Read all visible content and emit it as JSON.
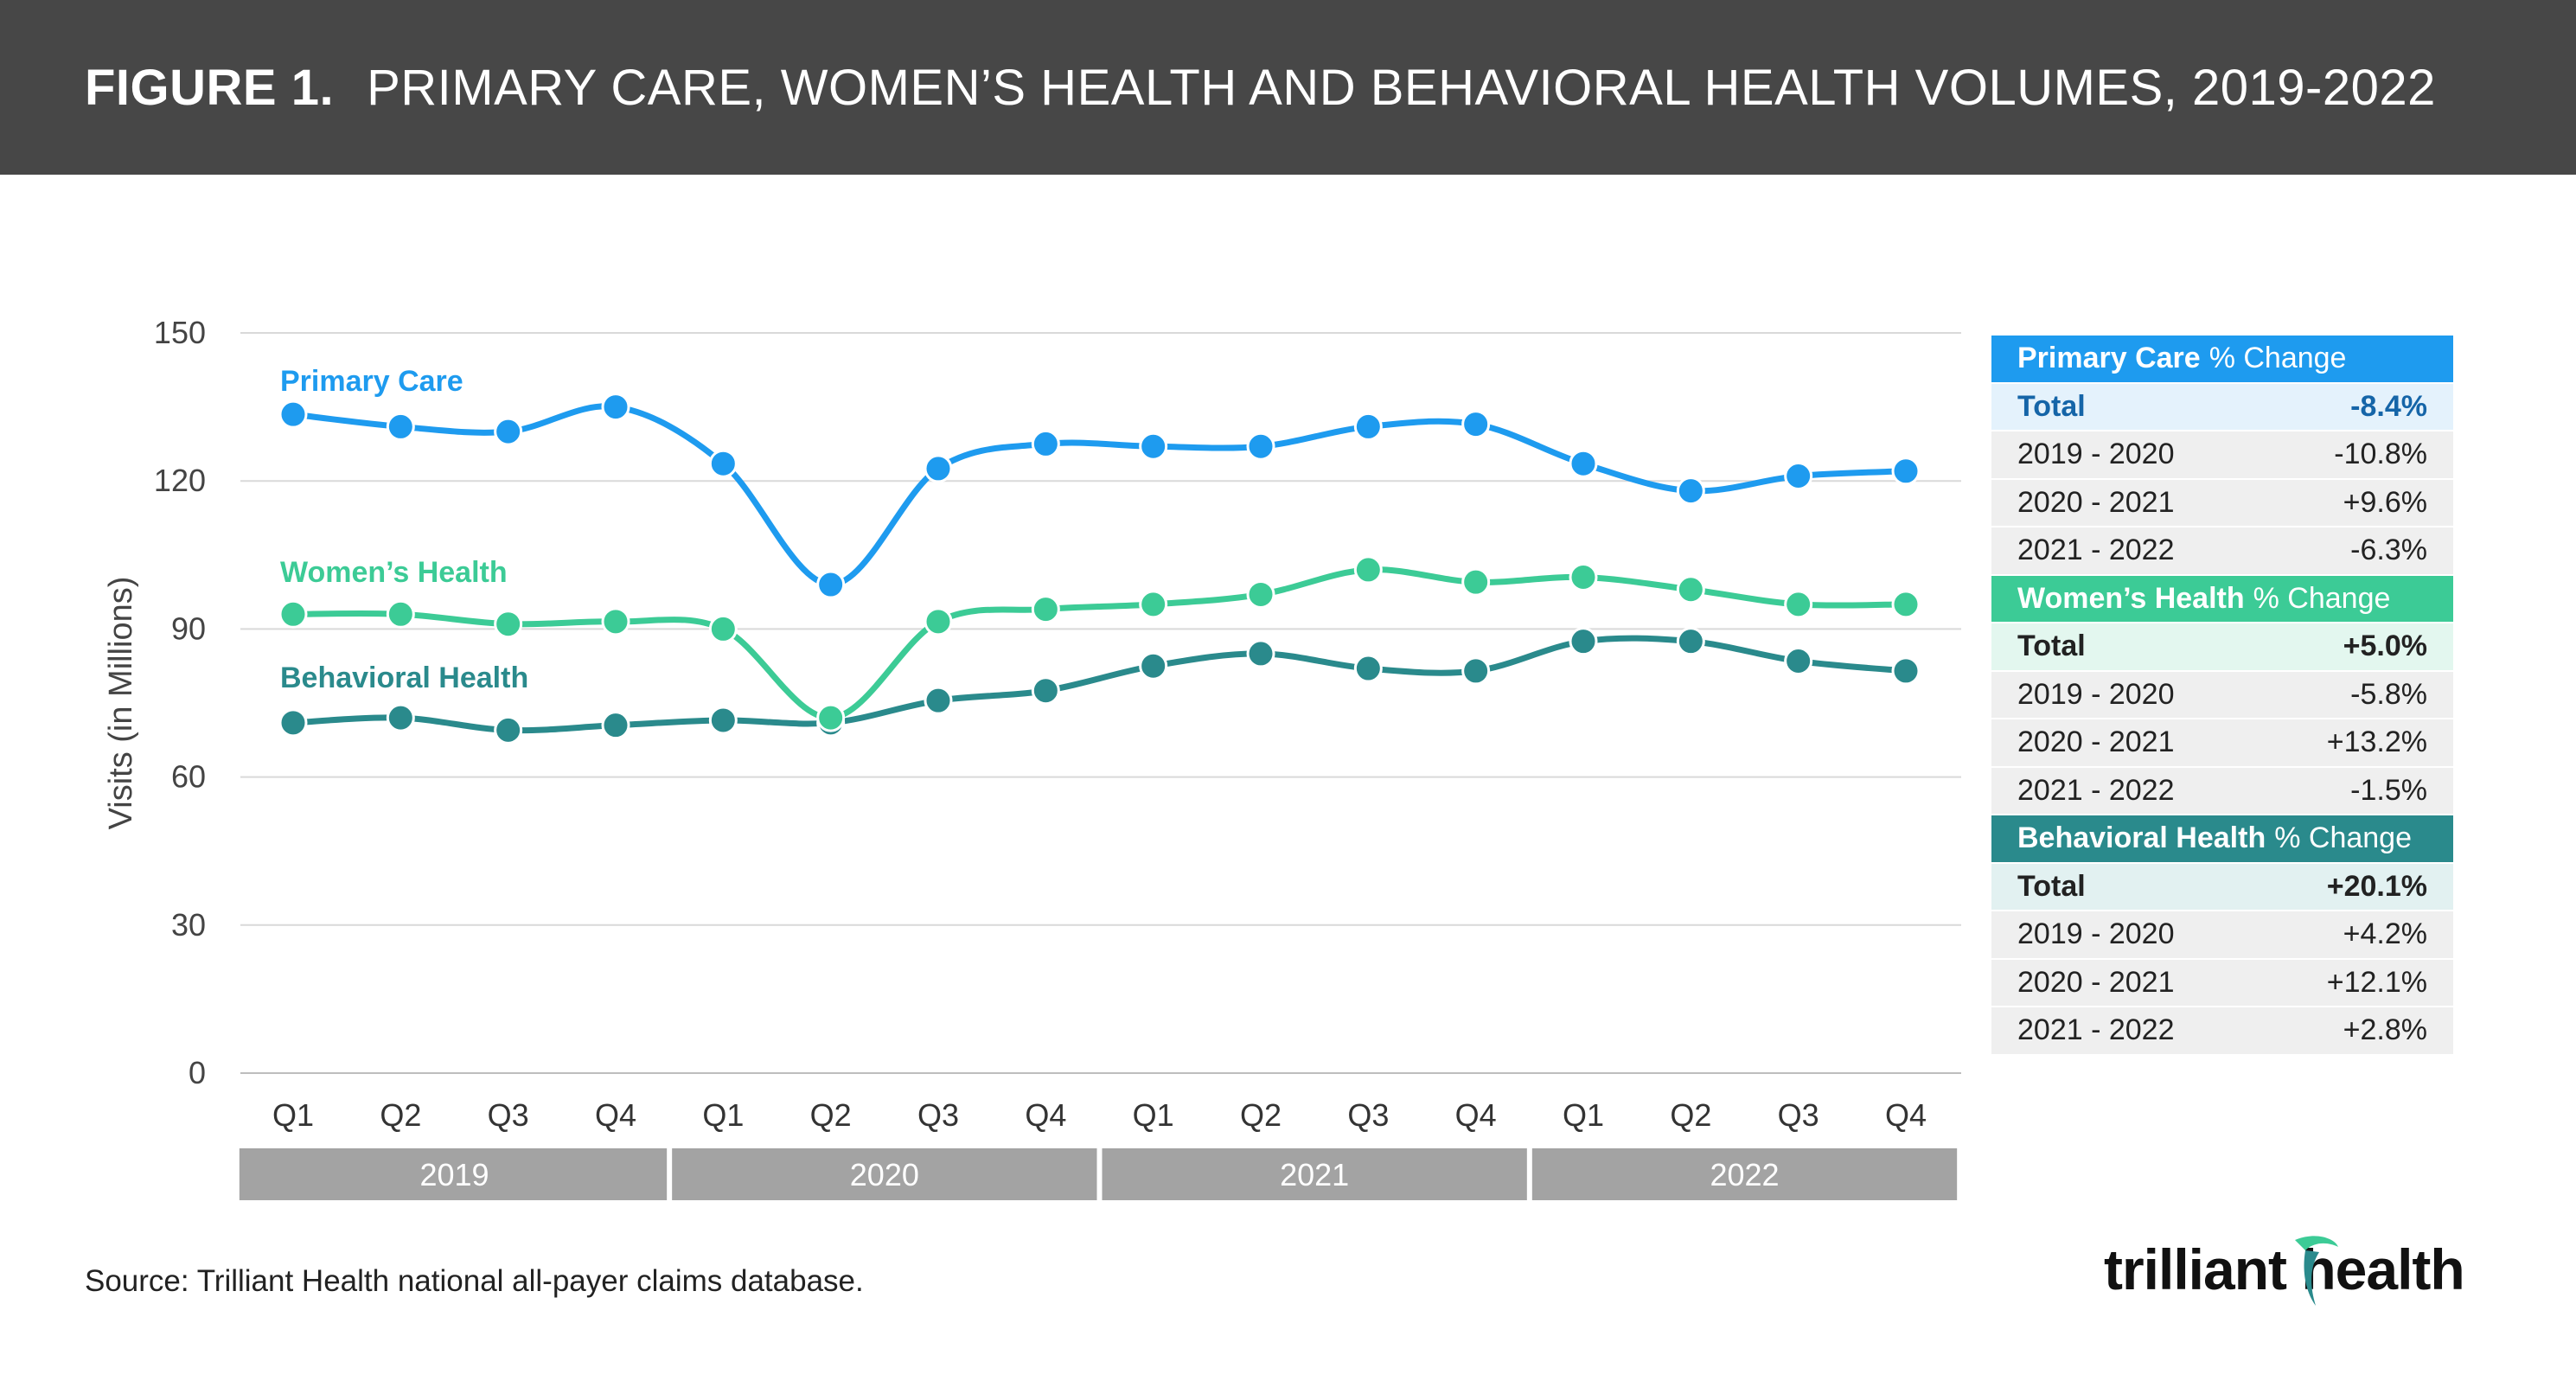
{
  "header": {
    "figure_label": "FIGURE 1.",
    "title": "PRIMARY CARE, WOMEN’S HEALTH AND BEHAVIORAL HEALTH VOLUMES, 2019-2022"
  },
  "colors": {
    "header_bg": "#474747",
    "primary_care": "#1e9bef",
    "womens_health": "#3ccb96",
    "behavioral_health": "#2a8a8c",
    "year_band": "#a3a3a3"
  },
  "chart_data": {
    "type": "line",
    "ylabel": "Visits (in Millions)",
    "xlabel": "",
    "ylim": [
      0,
      150
    ],
    "yticks": [
      0,
      30,
      60,
      90,
      120,
      150
    ],
    "grid": true,
    "categories": [
      "Q1",
      "Q2",
      "Q3",
      "Q4",
      "Q1",
      "Q2",
      "Q3",
      "Q4",
      "Q1",
      "Q2",
      "Q3",
      "Q4",
      "Q1",
      "Q2",
      "Q3",
      "Q4"
    ],
    "year_groups": [
      {
        "label": "2019",
        "count": 4
      },
      {
        "label": "2020",
        "count": 4
      },
      {
        "label": "2021",
        "count": 4
      },
      {
        "label": "2022",
        "count": 4
      }
    ],
    "series": [
      {
        "name": "Primary Care",
        "color": "#1e9bef",
        "values": [
          133.5,
          131,
          130,
          135,
          123.5,
          99,
          122.5,
          127.5,
          127,
          127,
          131,
          131.5,
          123.5,
          118,
          121,
          122
        ]
      },
      {
        "name": "Women’s Health",
        "color": "#3ccb96",
        "values": [
          93,
          93,
          91,
          91.5,
          90,
          72,
          91.5,
          94,
          95,
          97,
          102,
          99.5,
          100.5,
          98,
          95,
          95
        ]
      },
      {
        "name": "Behavioral Health",
        "color": "#2a8a8c",
        "values": [
          71,
          72,
          69.5,
          70.5,
          71.5,
          71,
          75.5,
          77.5,
          82.5,
          85,
          82,
          81.5,
          87.5,
          87.5,
          83.5,
          81.5
        ]
      }
    ]
  },
  "change_table": [
    {
      "name": "Primary Care",
      "suffix": "% Change",
      "color": "#1e9bef",
      "total_bg": "#e4f2fc",
      "total_color": "#1565a8",
      "total_label": "Total",
      "total_value": "-8.4%",
      "rows": [
        {
          "label": "2019 - 2020",
          "value": "-10.8%"
        },
        {
          "label": "2020 - 2021",
          "value": "+9.6%"
        },
        {
          "label": "2021 - 2022",
          "value": "-6.3%"
        }
      ]
    },
    {
      "name": "Women’s Health",
      "suffix": "% Change",
      "color": "#3ccb96",
      "total_bg": "#e3f7ef",
      "total_color": "#222222",
      "total_label": "Total",
      "total_value": "+5.0%",
      "rows": [
        {
          "label": "2019 - 2020",
          "value": "-5.8%"
        },
        {
          "label": "2020 - 2021",
          "value": "+13.2%"
        },
        {
          "label": "2021 - 2022",
          "value": "-1.5%"
        }
      ]
    },
    {
      "name": "Behavioral Health",
      "suffix": "% Change",
      "color": "#2a8a8c",
      "total_bg": "#e2f1f1",
      "total_color": "#222222",
      "total_label": "Total",
      "total_value": "+20.1%",
      "rows": [
        {
          "label": "2019 - 2020",
          "value": "+4.2%"
        },
        {
          "label": "2020 - 2021",
          "value": "+12.1%"
        },
        {
          "label": "2021 - 2022",
          "value": "+2.8%"
        }
      ]
    }
  ],
  "footer": {
    "source": "Source: Trilliant Health national all-payer claims database.",
    "logo_text": "trilliant health"
  }
}
